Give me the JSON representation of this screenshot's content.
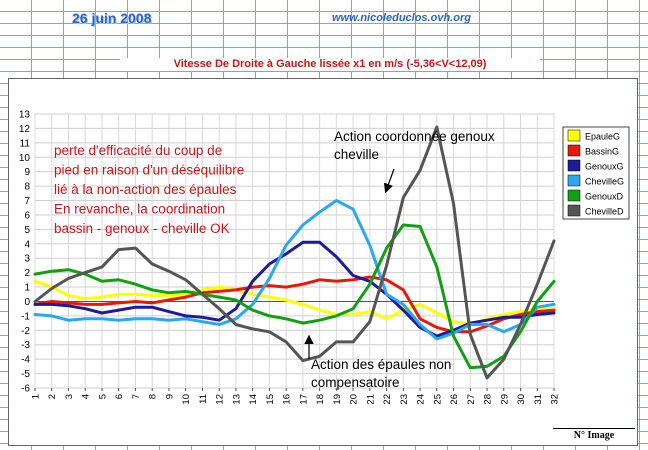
{
  "header": {
    "date": "26 juin 2008",
    "site": "www.nicoleduclos.ovh.org"
  },
  "footer": {
    "label": "N° Image"
  },
  "chart_data": {
    "type": "line",
    "title": "Vitesse De Droite à Gauche lissée x1 en m/s (-5,36<V<12,09)",
    "xlabel": "",
    "ylabel": "",
    "x": [
      1,
      2,
      3,
      4,
      5,
      6,
      7,
      8,
      9,
      10,
      11,
      12,
      13,
      14,
      15,
      16,
      17,
      18,
      19,
      20,
      21,
      22,
      23,
      24,
      25,
      26,
      27,
      28,
      29,
      30,
      31,
      32
    ],
    "ylim": [
      -6,
      13
    ],
    "yticks": [
      13,
      12,
      11,
      10,
      9,
      8,
      7,
      6,
      5,
      4,
      3,
      2,
      1,
      0,
      -1,
      -2,
      -3,
      -4,
      -5,
      -6
    ],
    "grid": true,
    "legend_position": "right",
    "series": [
      {
        "name": "EpauleG",
        "color": "#ffff00",
        "values": [
          1.4,
          1.0,
          0.4,
          0.2,
          0.3,
          0.5,
          0.5,
          0.4,
          0.4,
          0.5,
          0.8,
          1.0,
          0.8,
          0.5,
          0.3,
          0.1,
          -0.2,
          -0.6,
          -0.9,
          -0.9,
          -0.7,
          -1.2,
          -0.6,
          -0.2,
          -0.8,
          -1.4,
          -1.6,
          -1.2,
          -0.9,
          -0.7,
          -0.5,
          -0.5
        ]
      },
      {
        "name": "BassinG",
        "color": "#e8180a",
        "values": [
          -0.2,
          0.0,
          -0.1,
          -0.2,
          -0.2,
          -0.1,
          0.0,
          -0.1,
          0.1,
          0.3,
          0.6,
          0.7,
          0.8,
          1.0,
          1.1,
          1.0,
          1.2,
          1.5,
          1.4,
          1.5,
          1.7,
          1.5,
          0.8,
          -1.2,
          -1.8,
          -2.1,
          -2.1,
          -1.7,
          -1.2,
          -0.9,
          -0.7,
          -0.6
        ]
      },
      {
        "name": "GenouxG",
        "color": "#1c1c96",
        "values": [
          -0.2,
          -0.2,
          -0.3,
          -0.5,
          -0.8,
          -0.6,
          -0.4,
          -0.4,
          -0.7,
          -1.0,
          -1.1,
          -1.3,
          -0.5,
          1.4,
          2.6,
          3.3,
          4.1,
          4.1,
          3.1,
          1.8,
          1.4,
          0.5,
          -0.6,
          -1.8,
          -2.4,
          -2.0,
          -1.5,
          -1.3,
          -1.1,
          -1.1,
          -0.9,
          -0.8
        ]
      },
      {
        "name": "ChevilleG",
        "color": "#29a8f0",
        "values": [
          -0.9,
          -1.0,
          -1.3,
          -1.2,
          -1.2,
          -1.3,
          -1.2,
          -1.2,
          -1.3,
          -1.2,
          -1.4,
          -1.6,
          -1.2,
          -0.2,
          1.6,
          3.9,
          5.3,
          6.2,
          7.0,
          6.4,
          3.9,
          0.5,
          -0.2,
          -1.6,
          -2.6,
          -2.2,
          -1.6,
          -1.6,
          -2.1,
          -1.6,
          -0.4,
          -0.2
        ]
      },
      {
        "name": "GenouxD",
        "color": "#12a012",
        "values": [
          1.9,
          2.1,
          2.2,
          1.9,
          1.4,
          1.5,
          1.2,
          0.8,
          0.6,
          0.7,
          0.5,
          0.3,
          0.1,
          -0.6,
          -1.0,
          -1.2,
          -1.5,
          -1.3,
          -1.0,
          -0.5,
          1.2,
          3.7,
          5.3,
          5.2,
          2.4,
          -2.4,
          -4.6,
          -4.5,
          -3.8,
          -2.1,
          0.0,
          1.4
        ]
      },
      {
        "name": "ChevilleD",
        "color": "#555555",
        "values": [
          0.0,
          0.9,
          1.6,
          2.0,
          2.4,
          3.6,
          3.7,
          2.6,
          2.1,
          1.5,
          0.5,
          -0.5,
          -1.6,
          -1.9,
          -2.1,
          -2.8,
          -4.1,
          -3.8,
          -2.8,
          -2.8,
          -1.4,
          2.5,
          7.2,
          9.1,
          12.1,
          6.8,
          -2.3,
          -5.3,
          -4.0,
          -1.6,
          1.2,
          4.2
        ]
      }
    ],
    "annotations": [
      {
        "id": "annotation-left",
        "lines": [
          "perte d'efficacité du coup de",
          "pied en raison d'un déséquilibre",
          "lié à la non-action des épaules",
          "En revanche, la coordination",
          "bassin - genoux - cheville OK"
        ],
        "color": "#c8161a"
      },
      {
        "id": "annotation-top",
        "lines": [
          "Action coordonnée genoux",
          "cheville"
        ],
        "color": "#000000"
      },
      {
        "id": "annotation-bottom",
        "lines": [
          "Action des épaules non",
          "compensatoire"
        ],
        "color": "#000000"
      }
    ]
  }
}
